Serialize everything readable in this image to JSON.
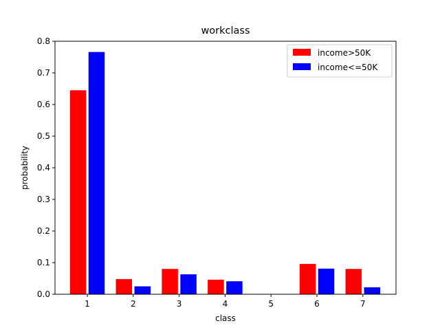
{
  "chart_data": {
    "type": "bar",
    "title": "workclass",
    "xlabel": "class",
    "ylabel": "probability",
    "categories": [
      "1",
      "2",
      "3",
      "4",
      "5",
      "6",
      "7"
    ],
    "series": [
      {
        "name": "income>50K",
        "color": "#ff0000",
        "values": [
          0.645,
          0.048,
          0.08,
          0.046,
          0.0,
          0.096,
          0.08
        ]
      },
      {
        "name": "income<=50K",
        "color": "#0000ff",
        "values": [
          0.766,
          0.025,
          0.063,
          0.041,
          0.0,
          0.081,
          0.022
        ]
      }
    ],
    "ylim": [
      0,
      0.8
    ],
    "yticks": [
      "0.0",
      "0.1",
      "0.2",
      "0.3",
      "0.4",
      "0.5",
      "0.6",
      "0.7",
      "0.8"
    ],
    "legend_position": "top-right",
    "grid": false
  }
}
